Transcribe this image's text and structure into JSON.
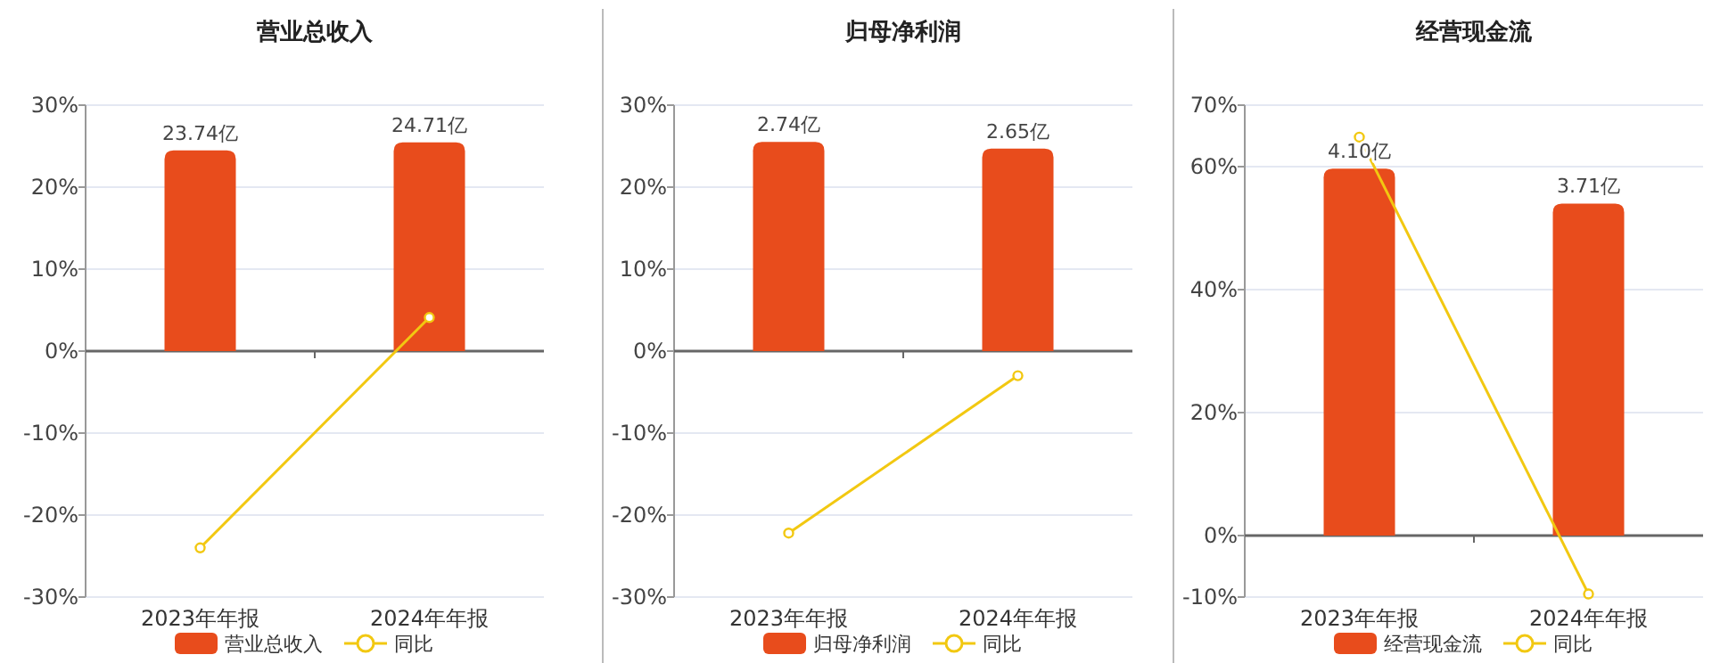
{
  "chart_data": [
    {
      "type": "bar",
      "title": "营业总收入",
      "categories": [
        "2023年年报",
        "2024年年报"
      ],
      "series": [
        {
          "name": "营业总收入",
          "axis": "y2",
          "color": "#e84c1c",
          "values": [
            23.74,
            24.71
          ],
          "value_labels": [
            "23.74亿",
            "24.71亿"
          ]
        },
        {
          "name": "同比",
          "type": "line",
          "color": "#f2c811",
          "values": [
            -24.0,
            4.1
          ],
          "marker": "circle"
        }
      ],
      "ylim": [
        -30,
        30
      ],
      "yticks": [
        {
          "value": -30,
          "label": "-30%"
        },
        {
          "value": -20,
          "label": "-20%"
        },
        {
          "value": -10,
          "label": "-10%"
        },
        {
          "value": 0,
          "label": "0%"
        },
        {
          "value": 10,
          "label": "10%"
        },
        {
          "value": 20,
          "label": "20%"
        },
        {
          "value": 30,
          "label": "30%"
        }
      ],
      "y2lim": [
        -29.1,
        29.1
      ],
      "grid": "y",
      "legend": "bottom"
    },
    {
      "type": "bar",
      "title": "归母净利润",
      "categories": [
        "2023年年报",
        "2024年年报"
      ],
      "series": [
        {
          "name": "归母净利润",
          "axis": "y2",
          "color": "#e84c1c",
          "values": [
            2.74,
            2.65
          ],
          "value_labels": [
            "2.74亿",
            "2.65亿"
          ]
        },
        {
          "name": "同比",
          "type": "line",
          "color": "#f2c811",
          "values": [
            -22.2,
            -3.0
          ],
          "marker": "circle"
        }
      ],
      "ylim": [
        -30,
        30
      ],
      "yticks": [
        {
          "value": -30,
          "label": "-30%"
        },
        {
          "value": -20,
          "label": "-20%"
        },
        {
          "value": -10,
          "label": "-10%"
        },
        {
          "value": 0,
          "label": "0%"
        },
        {
          "value": 10,
          "label": "10%"
        },
        {
          "value": 20,
          "label": "20%"
        },
        {
          "value": 30,
          "label": "30%"
        }
      ],
      "y2lim": [
        -3.22,
        3.22
      ],
      "grid": "y",
      "legend": "bottom"
    },
    {
      "type": "bar",
      "title": "经营现金流",
      "categories": [
        "2023年年报",
        "2024年年报"
      ],
      "series": [
        {
          "name": "经营现金流",
          "axis": "y2",
          "color": "#e84c1c",
          "values": [
            4.1,
            3.71
          ],
          "value_labels": [
            "4.10亿",
            "3.71亿"
          ]
        },
        {
          "name": "同比",
          "type": "line",
          "color": "#f2c811",
          "values": [
            64.8,
            -9.5
          ],
          "marker": "circle"
        }
      ],
      "ylim": [
        -10,
        70
      ],
      "yticks": [
        {
          "value": -10,
          "label": "-10%"
        },
        {
          "value": 0,
          "label": "0%"
        },
        {
          "value": 20,
          "label": "20%"
        },
        {
          "value": 40,
          "label": "40%"
        },
        {
          "value": 60,
          "label": "60%"
        },
        {
          "value": 70,
          "label": "70%"
        }
      ],
      "y2lim": [
        -0.688,
        4.81
      ],
      "grid": "y",
      "legend": "bottom"
    }
  ]
}
